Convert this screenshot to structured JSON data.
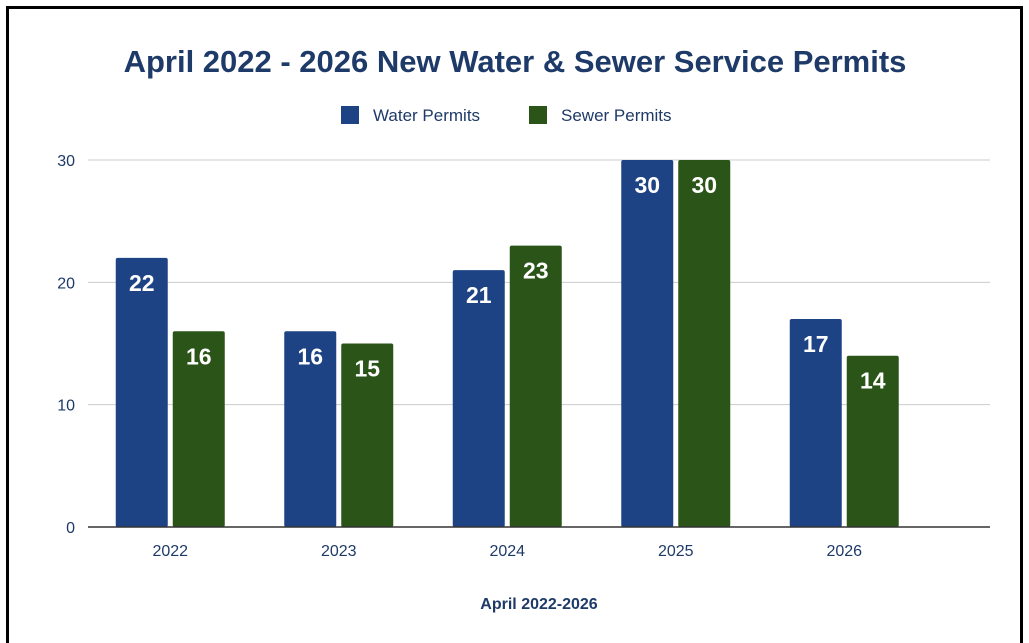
{
  "chart_data": {
    "type": "bar",
    "title": "April 2022 - 2026 New Water & Sewer Service Permits",
    "xlabel": "April 2022-2026",
    "ylabel": "",
    "categories": [
      "2022",
      "2023",
      "2024",
      "2025",
      "2026"
    ],
    "series": [
      {
        "name": "Water Permits",
        "values": [
          22,
          16,
          21,
          30,
          17
        ],
        "color": "#1e4384"
      },
      {
        "name": "Sewer Permits",
        "values": [
          16,
          15,
          23,
          30,
          14
        ],
        "color": "#2b5418"
      }
    ],
    "ylim": [
      0,
      30
    ],
    "yticks": [
      "0",
      "10",
      "20",
      "30"
    ],
    "grid": true,
    "legend_position": "top-center",
    "data_labels": true,
    "colors": {
      "title": "#1e3a68",
      "axis_text": "#1e3a68",
      "data_label": "#ffffff",
      "gridline": "#cccccc",
      "axis_line": "#333333"
    }
  }
}
